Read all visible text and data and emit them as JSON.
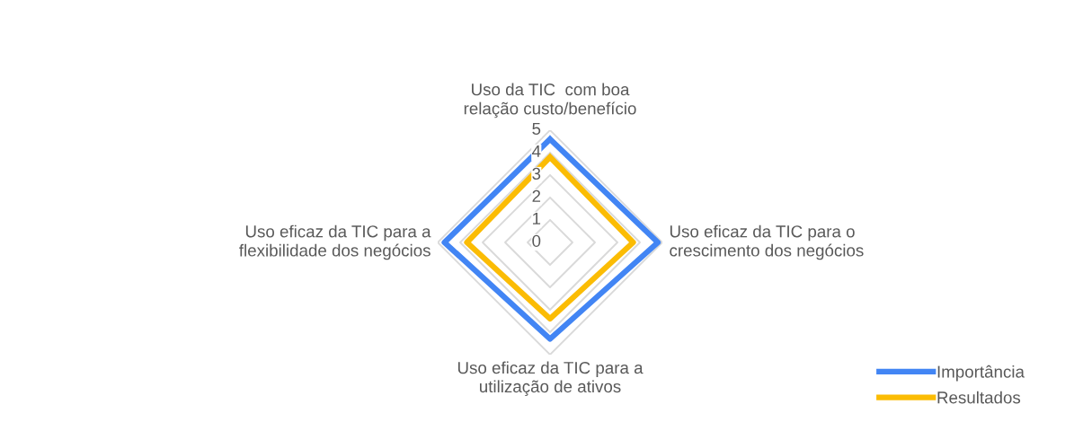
{
  "chart_data": {
    "type": "radar",
    "categories": [
      "Uso da TIC  com boa\nrelação custo/benefício",
      "Uso eficaz da TIC para o\ncrescimento dos negócios",
      "Uso eficaz da TIC para a\nutilização de ativos",
      "Uso eficaz da TIC para a\nflexibilidade dos negócios"
    ],
    "series": [
      {
        "name": "Importância",
        "color": "#4285f4",
        "values": [
          4.6,
          4.8,
          4.3,
          4.7
        ]
      },
      {
        "name": "Resultados",
        "color": "#fbbc04",
        "values": [
          3.8,
          3.7,
          3.4,
          3.7
        ]
      }
    ],
    "ylim": [
      0,
      5
    ],
    "yticks": [
      0,
      1,
      2,
      3,
      4,
      5
    ],
    "grid": true,
    "legend": "bottom right"
  }
}
